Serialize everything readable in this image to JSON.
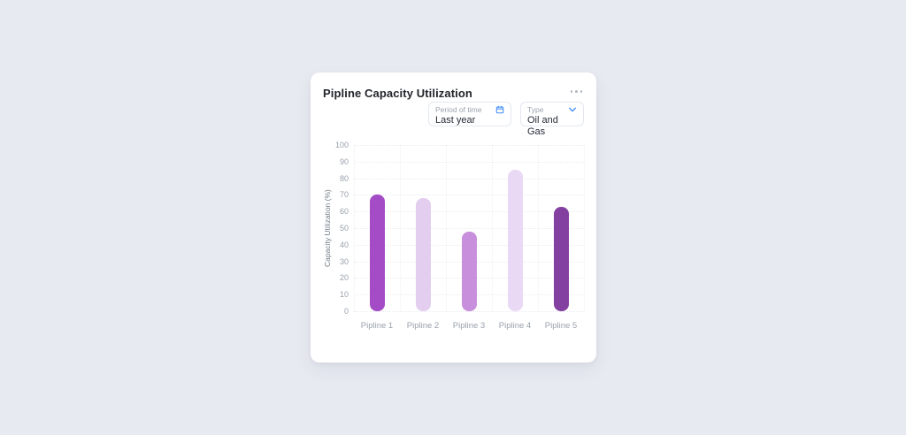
{
  "page": {
    "background": "#e8eaf1"
  },
  "card": {
    "title": "Pipline Capacity Utilization",
    "menu_icon": "ellipsis-horizontal",
    "filters": [
      {
        "label": "Period of time",
        "value": "Last year",
        "icon": "calendar",
        "icon_color": "#3d8af7"
      },
      {
        "label": "Type",
        "value": "Oil and Gas",
        "icon": "chevron-down",
        "icon_color": "#3d8af7"
      }
    ]
  },
  "chart_data": {
    "type": "bar",
    "categories": [
      "Pipline 1",
      "Pipline 2",
      "Pipline 3",
      "Pipline 4",
      "Pipline 5"
    ],
    "values": [
      70,
      68,
      48,
      85,
      63
    ],
    "bar_colors": [
      "#a34cc5",
      "#e3cef0",
      "#c78fdc",
      "#ead9f5",
      "#8440a0"
    ],
    "title": "",
    "xlabel": "",
    "ylabel": "Capacity Utilization (%)",
    "ylim": [
      0,
      100
    ],
    "ytick_step": 10,
    "grid": true,
    "legend": false
  }
}
